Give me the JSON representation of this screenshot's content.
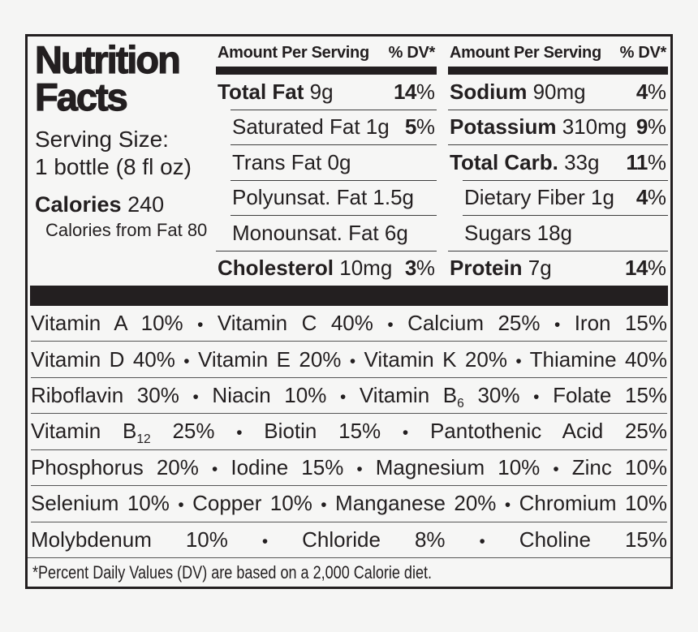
{
  "title": {
    "line1": "Nutrition",
    "line2": "Facts"
  },
  "serving": {
    "label": "Serving Size:",
    "size": "1 bottle (8 fl oz)"
  },
  "calories": {
    "label": "Calories",
    "value": "240",
    "from_fat": "Calories from Fat 80"
  },
  "columns": [
    {
      "header": {
        "amount": "Amount Per Serving",
        "dv": "% DV*"
      },
      "rows": [
        {
          "name": "Total Fat",
          "value": "9g",
          "dv": "14",
          "bold": true
        },
        {
          "name": "Saturated Fat",
          "value": "1g",
          "dv": "5",
          "indent": true
        },
        {
          "name": "Trans Fat",
          "value": "0g",
          "indent": true
        },
        {
          "name": "Polyunsat. Fat",
          "value": "1.5g",
          "indent": true
        },
        {
          "name": "Monounsat. Fat",
          "value": "6g",
          "indent": true
        },
        {
          "name": "Cholesterol",
          "value": "10mg",
          "dv": "3",
          "bold": true
        }
      ]
    },
    {
      "header": {
        "amount": "Amount Per Serving",
        "dv": "% DV*"
      },
      "rows": [
        {
          "name": "Sodium",
          "value": "90mg",
          "dv": "4",
          "bold": true
        },
        {
          "name": "Potassium",
          "value": "310mg",
          "dv": "9",
          "bold": true
        },
        {
          "name": "Total Carb.",
          "value": "33g",
          "dv": "11",
          "bold": true
        },
        {
          "name": "Dietary Fiber",
          "value": "1g",
          "dv": "4",
          "indent": true
        },
        {
          "name": "Sugars",
          "value": "18g",
          "indent": true
        },
        {
          "name": "Protein",
          "value": "7g",
          "dv": "14",
          "bold": true
        }
      ]
    }
  ],
  "micronutrients": {
    "separator": "•",
    "rows": [
      [
        "Vitamin A 10%",
        "Vitamin C 40%",
        "Calcium 25%",
        "Iron 15%"
      ],
      [
        "Vitamin D 40%",
        "Vitamin E 20%",
        "Vitamin K 20%",
        "Thiamine 40%"
      ],
      [
        "Riboflavin 30%",
        "Niacin 10%",
        "Vitamin B_{6} 30%",
        "Folate 15%"
      ],
      [
        "Vitamin B_{12} 25%",
        "Biotin 15%",
        "Pantothenic Acid 25%"
      ],
      [
        "Phosphorus 20%",
        "Iodine 15%",
        "Magnesium 10%",
        "Zinc 10%"
      ],
      [
        "Selenium 10%",
        "Copper 10%",
        "Manganese 20%",
        "Chromium 10%"
      ],
      [
        "Molybdenum 10%",
        "Chloride 8%",
        "Choline 15%"
      ]
    ]
  },
  "footnote": "*Percent Daily Values (DV) are based on a 2,000 Calorie diet.",
  "colors": {
    "text": "#231f20",
    "background": "#f5f5f4",
    "label_background": "#f6f6f5",
    "bar": "#231f20",
    "rule": "#555555"
  }
}
